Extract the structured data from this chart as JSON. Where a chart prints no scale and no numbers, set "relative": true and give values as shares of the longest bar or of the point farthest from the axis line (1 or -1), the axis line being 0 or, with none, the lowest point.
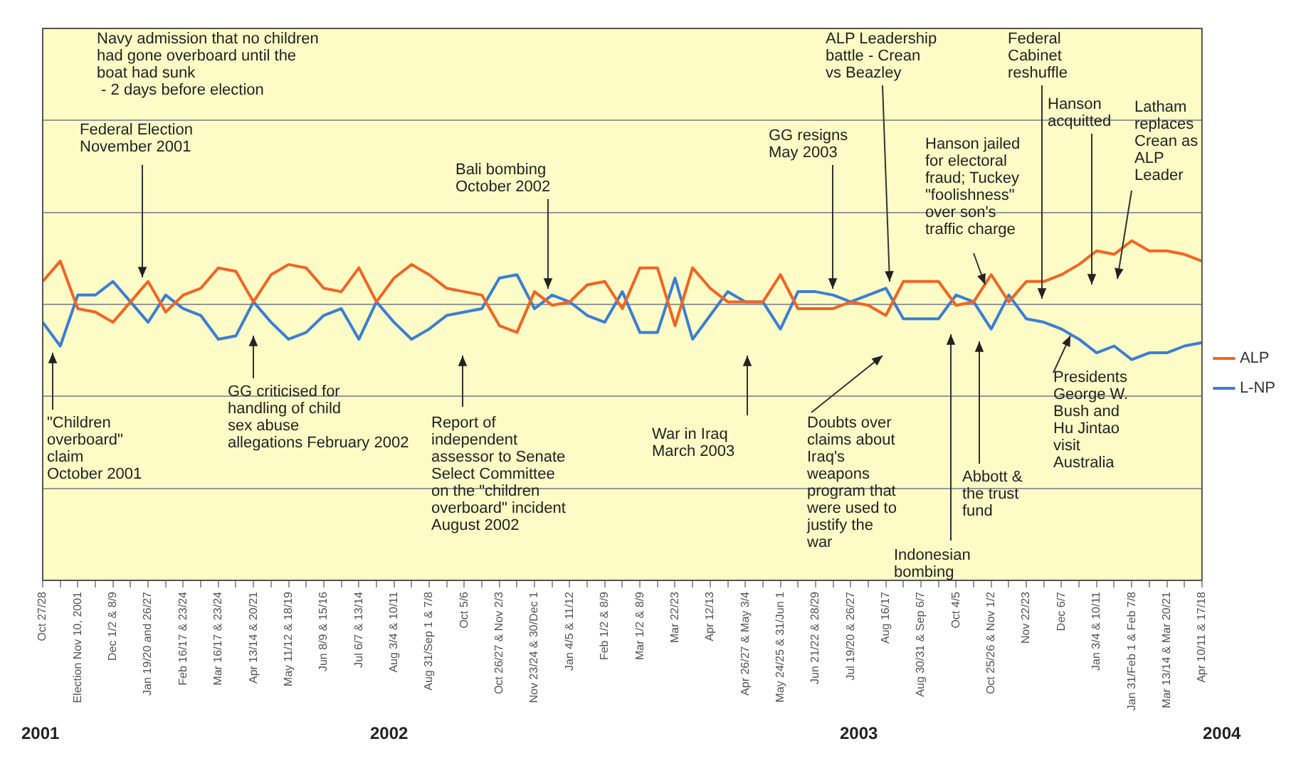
{
  "chart_data": {
    "type": "line",
    "relative": true,
    "grid": "y",
    "legend": "right",
    "marker": "none",
    "line_style": "solid",
    "categories": [
      "Oct 27/28",
      null,
      "Election Nov 10, 2001",
      null,
      "Dec 1/2 & 8/9",
      null,
      "Jan 19/20 and 26/27",
      null,
      "Feb 16/17 & 23/24",
      null,
      "Mar 16/17 & 23/24",
      null,
      "Apr 13/14 & 20/21",
      null,
      "May 11/12 & 18/19",
      null,
      "Jun 8/9 & 15/16",
      null,
      "Jul 6/7 & 13/14",
      null,
      "Aug 3/4 & 10/11",
      null,
      "Aug 31/Sep 1 & 7/8",
      null,
      "Oct 5/6",
      null,
      "Oct 26/27 & Nov 2/3",
      null,
      "Nov 23/24 & 30/Dec 1",
      null,
      "Jan 4/5 & 11/12",
      null,
      "Feb 1/2 & 8/9",
      null,
      "Mar 1/2 & 8/9",
      null,
      "Mar 22/23",
      null,
      "Apr 12/13",
      null,
      "Apr 26/27 & May 3/4",
      null,
      "May 24/25 & 31/Jun 1",
      null,
      "Jun 21/22 & 28/29",
      null,
      "Jul 19/20 & 26/27",
      null,
      "Aug 16/17",
      null,
      "Aug 30/31 & Sep 6/7",
      null,
      "Oct 4/5",
      null,
      "Oct 25/26 & Nov 1/2",
      null,
      "Nov 22/23",
      null,
      "Dec 6/7",
      null,
      "Jan 3/4 & 10/11",
      null,
      "Jan 31/Feb 1 & Feb 7/8",
      null,
      "Mar 13/14 & Mar 20/21",
      null,
      "Apr 10/11 & 17/18"
    ],
    "series": [
      {
        "name": "ALP",
        "color": "#f26522",
        "values": [
          0.88,
          0.94,
          0.8,
          0.79,
          0.76,
          0.82,
          0.88,
          0.79,
          0.84,
          0.86,
          0.92,
          0.91,
          0.82,
          0.9,
          0.93,
          0.92,
          0.86,
          0.85,
          0.92,
          0.82,
          0.89,
          0.93,
          0.9,
          0.86,
          0.85,
          0.84,
          0.75,
          0.73,
          0.85,
          0.81,
          0.82,
          0.87,
          0.88,
          0.8,
          0.92,
          0.92,
          0.75,
          0.92,
          0.86,
          0.82,
          0.82,
          0.82,
          0.9,
          0.8,
          0.8,
          0.8,
          0.82,
          0.81,
          0.78,
          0.88,
          0.88,
          0.88,
          0.81,
          0.82,
          0.9,
          0.82,
          0.88,
          0.88,
          0.9,
          0.93,
          0.97,
          0.96,
          1,
          0.97,
          0.97,
          0.96,
          0.94
        ]
      },
      {
        "name": "L-NP",
        "color": "#3a7fd5",
        "values": [
          0.76,
          0.69,
          0.84,
          0.84,
          0.88,
          0.82,
          0.76,
          0.84,
          0.8,
          0.78,
          0.71,
          0.72,
          0.82,
          0.76,
          0.71,
          0.73,
          0.78,
          0.8,
          0.71,
          0.82,
          0.76,
          0.71,
          0.74,
          0.78,
          0.79,
          0.8,
          0.89,
          0.9,
          0.8,
          0.84,
          0.82,
          0.78,
          0.76,
          0.85,
          0.73,
          0.73,
          0.89,
          0.71,
          0.78,
          0.85,
          0.82,
          0.82,
          0.74,
          0.85,
          0.85,
          0.84,
          0.82,
          0.84,
          0.86,
          0.77,
          0.77,
          0.77,
          0.84,
          0.82,
          0.74,
          0.84,
          0.77,
          0.76,
          0.74,
          0.71,
          0.67,
          0.69,
          0.65,
          0.67,
          0.67,
          0.69,
          0.7
        ]
      }
    ],
    "annotations": [
      "Navy admission that no children\nhad gone overboard until the\nboat had sunk\n - 2 days before election",
      "Federal Election\nNovember 2001",
      "Bali bombing\nOctober 2002",
      "GG resigns\nMay 2003",
      "ALP Leadership\nbattle - Crean\nvs Beazley",
      "Hanson jailed\nfor electoral\nfraud; Tuckey\n\"foolishness\"\nover son's\ntraffic charge",
      "Federal\nCabinet\nreshuffle",
      "Hanson\nacquitted",
      "Latham\nreplaces\nCrean as\nALP\nLeader",
      "\"Children\noverboard\"\nclaim\nOctober 2001",
      "GG criticised for\nhandling of child\nsex abuse\nallegations February 2002",
      "Report of\nindependent\nassessor to Senate\nSelect Committee\non the \"children\noverboard\" incident\nAugust 2002",
      "War in Iraq\nMarch 2003",
      "Doubts over\nclaims about\nIraq's\nweapons\nprogram that\nwere used to\njustify the\nwar",
      "Indonesian\nbombing",
      "Abbott &\nthe trust\nfund",
      "Presidents\nGeorge W.\nBush and\nHu Jintao\nvisit\nAustralia",
      "2001",
      "2002",
      "2003",
      "2004"
    ]
  }
}
